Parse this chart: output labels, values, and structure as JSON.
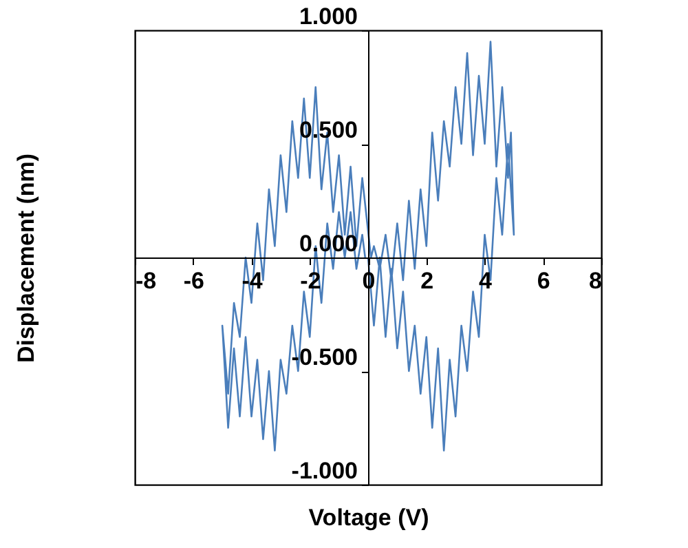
{
  "chart_data": {
    "type": "line",
    "xlabel": "Voltage (V)",
    "ylabel": "Displacement (nm)",
    "xlim": [
      -8,
      8
    ],
    "xticks": [
      -8,
      -6,
      -4,
      -2,
      0,
      2,
      4,
      6,
      8
    ],
    "ylim": [
      -1,
      1
    ],
    "yticks": [
      {
        "value": -1,
        "label": "-1.000"
      },
      {
        "value": -0.5,
        "label": "-0.500"
      },
      {
        "value": 0,
        "label": "0.000"
      },
      {
        "value": 0.5,
        "label": "0.500"
      },
      {
        "value": 1,
        "label": "1.000"
      }
    ],
    "grid": false,
    "marker": "none",
    "line_style": "solid",
    "series": [
      {
        "color": "#4a7ebb",
        "x": [
          0,
          0.2,
          0.4,
          0.6,
          0.8,
          1.0,
          1.2,
          1.4,
          1.6,
          1.8,
          2.0,
          2.2,
          2.4,
          2.6,
          2.8,
          3.0,
          3.2,
          3.4,
          3.6,
          3.8,
          4.0,
          4.2,
          4.4,
          4.6,
          4.8,
          5.0,
          4.9,
          4.8,
          4.6,
          4.4,
          4.2,
          4.0,
          3.8,
          3.6,
          3.4,
          3.2,
          3.0,
          2.8,
          2.6,
          2.4,
          2.2,
          2.0,
          1.8,
          1.6,
          1.4,
          1.2,
          1.0,
          0.8,
          0.6,
          0.4,
          0.2,
          0.1,
          -0.2,
          -0.4,
          -0.6,
          -0.8,
          -1.0,
          -1.2,
          -1.4,
          -1.6,
          -1.8,
          -2.0,
          -2.2,
          -2.4,
          -2.6,
          -2.8,
          -3.0,
          -3.2,
          -3.4,
          -3.6,
          -3.8,
          -4.0,
          -4.2,
          -4.4,
          -4.6,
          -4.8,
          -5.0,
          -4.8,
          -4.6,
          -4.4,
          -4.2,
          -4.0,
          -3.8,
          -3.6,
          -3.4,
          -3.2,
          -3.0,
          -2.8,
          -2.6,
          -2.4,
          -2.2,
          -2.0,
          -1.8,
          -1.6,
          -1.4,
          -1.2,
          -1.0,
          -0.8,
          -0.6,
          -0.4,
          -0.2,
          -0.1
        ],
        "values": [
          0.0,
          -0.3,
          0.0,
          -0.35,
          -0.05,
          -0.4,
          -0.15,
          -0.5,
          -0.3,
          -0.6,
          -0.35,
          -0.75,
          -0.4,
          -0.85,
          -0.45,
          -0.7,
          -0.3,
          -0.5,
          -0.15,
          -0.35,
          0.1,
          -0.1,
          0.35,
          0.1,
          0.5,
          0.1,
          0.55,
          0.35,
          0.75,
          0.4,
          0.95,
          0.5,
          0.8,
          0.45,
          0.9,
          0.5,
          0.75,
          0.4,
          0.6,
          0.25,
          0.55,
          0.05,
          0.3,
          -0.05,
          0.25,
          -0.1,
          0.15,
          -0.1,
          0.1,
          -0.05,
          0.05,
          0.0,
          0.35,
          0.05,
          0.4,
          0.1,
          0.45,
          0.2,
          0.55,
          0.3,
          0.75,
          0.35,
          0.7,
          0.35,
          0.6,
          0.2,
          0.45,
          0.05,
          0.3,
          -0.1,
          0.15,
          -0.2,
          0.0,
          -0.35,
          -0.2,
          -0.6,
          -0.3,
          -0.75,
          -0.4,
          -0.7,
          -0.35,
          -0.7,
          -0.45,
          -0.8,
          -0.5,
          -0.85,
          -0.45,
          -0.6,
          -0.3,
          -0.5,
          -0.15,
          -0.35,
          0.05,
          -0.2,
          0.15,
          -0.05,
          0.2,
          0.0,
          0.2,
          -0.05,
          0.1,
          0.0
        ]
      }
    ]
  }
}
